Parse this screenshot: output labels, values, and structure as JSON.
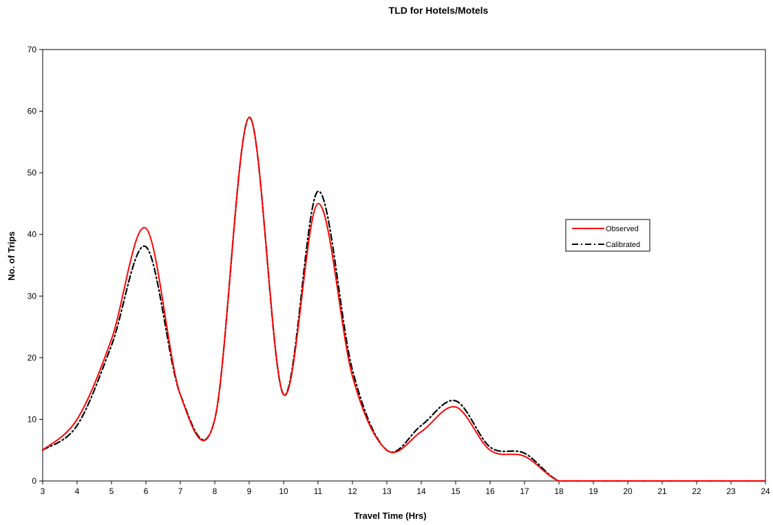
{
  "chart_data": {
    "type": "line",
    "title": "TLD for Hotels/Motels",
    "xlabel": "Travel Time (Hrs)",
    "ylabel": "No. of Trips",
    "xlim": [
      3,
      24
    ],
    "ylim": [
      0,
      70
    ],
    "x_ticks": [
      "3",
      "4",
      "5",
      "6",
      "7",
      "8",
      "9",
      "10",
      "11",
      "12",
      "13",
      "14",
      "15",
      "16",
      "17",
      "18",
      "19",
      "20",
      "21",
      "22",
      "23",
      "24"
    ],
    "y_ticks": [
      "0",
      "10",
      "20",
      "30",
      "40",
      "50",
      "60",
      "70"
    ],
    "grid": false,
    "legend_position": "right",
    "series": [
      {
        "name": "Observed",
        "color": "#ff0000",
        "style": "solid",
        "x": [
          3,
          4,
          5,
          6,
          7,
          8,
          9,
          10,
          11,
          12,
          13,
          14,
          15,
          16,
          17,
          18,
          19,
          20,
          21,
          22,
          23,
          24
        ],
        "y": [
          5,
          10,
          23,
          41,
          14,
          10,
          59,
          14,
          45,
          17,
          5,
          8,
          12,
          5,
          4,
          0,
          0,
          0,
          0,
          0,
          0,
          0
        ]
      },
      {
        "name": "Calibrated",
        "color": "#000000",
        "style": "dashdot",
        "x": [
          3,
          4,
          5,
          6,
          7,
          8,
          9,
          10,
          11,
          12,
          13,
          14,
          15,
          16,
          17,
          18,
          19,
          20,
          21,
          22,
          23,
          24
        ],
        "y": [
          5,
          9,
          22,
          38,
          14,
          10,
          59,
          14,
          47,
          18,
          5,
          9,
          13,
          5.5,
          4.5,
          0,
          0,
          0,
          0,
          0,
          0,
          0
        ]
      }
    ]
  }
}
